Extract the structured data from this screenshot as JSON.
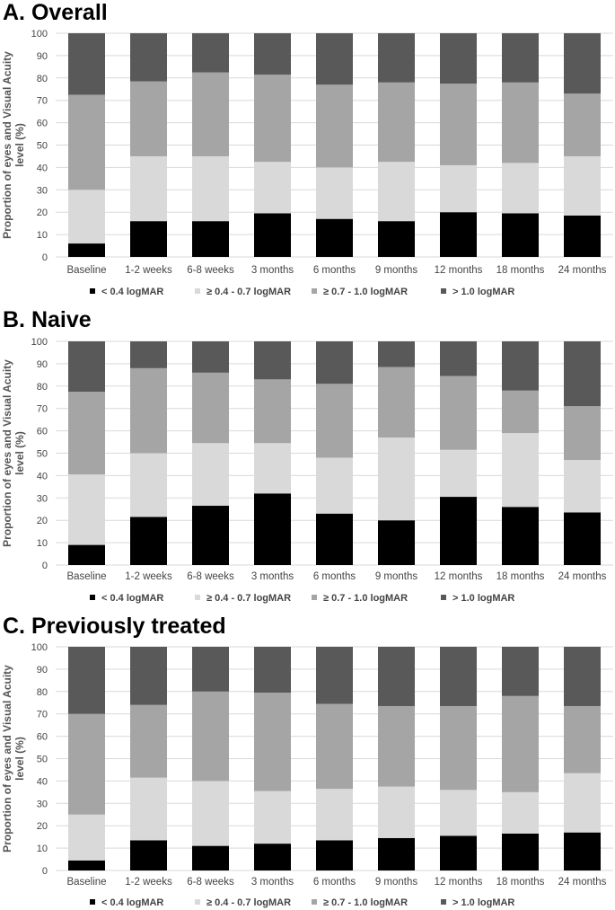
{
  "figure": {
    "series_colors": [
      "#000000",
      "#d9d9d9",
      "#a5a5a5",
      "#595959"
    ],
    "legend_labels": [
      "< 0.4 logMAR",
      "≥ 0.4 - 0.7 logMAR",
      "≥ 0.7 - 1.0 logMAR",
      "> 1.0 logMAR"
    ]
  },
  "chart_data": [
    {
      "type": "bar",
      "stacked": true,
      "title": "A. Overall",
      "ylabel": "Proportion of eyes and Visual Acuity level (%)",
      "ylabel_lines": [
        "Proportion of eyes and Visual Acuity",
        "level (%)"
      ],
      "ylim": [
        0,
        100
      ],
      "yticks": [
        0,
        10,
        20,
        30,
        40,
        50,
        60,
        70,
        80,
        90,
        100
      ],
      "grid": true,
      "legend": "bottom",
      "categories": [
        "Baseline",
        "1-2 weeks",
        "6-8 weeks",
        "3 months",
        "6 months",
        "9 months",
        "12 months",
        "18 months",
        "24 months"
      ],
      "series": [
        {
          "name": "< 0.4 logMAR",
          "values": [
            6,
            16,
            16,
            19.5,
            17,
            16,
            20,
            19.5,
            18.5
          ]
        },
        {
          "name": "≥ 0.4 - 0.7 logMAR",
          "values": [
            24,
            29,
            29,
            23,
            23,
            26.5,
            21,
            22.5,
            26.5
          ]
        },
        {
          "name": "≥ 0.7 - 1.0 logMAR",
          "values": [
            42.5,
            33.5,
            37.5,
            39,
            37,
            35.5,
            36.5,
            36,
            28
          ]
        },
        {
          "name": "> 1.0 logMAR",
          "values": [
            27.5,
            21.5,
            17.5,
            18.5,
            23,
            22,
            22.5,
            22,
            27
          ]
        }
      ]
    },
    {
      "type": "bar",
      "stacked": true,
      "title": "B. Naive",
      "ylabel": "Proportion of eyes and Visual Acuity level (%)",
      "ylabel_lines": [
        "Proportion of eyes and Visual Acuity",
        "level (%)"
      ],
      "ylim": [
        0,
        100
      ],
      "yticks": [
        0,
        10,
        20,
        30,
        40,
        50,
        60,
        70,
        80,
        90,
        100
      ],
      "grid": true,
      "legend": "bottom",
      "categories": [
        "Baseline",
        "1-2 weeks",
        "6-8 weeks",
        "3 months",
        "6 months",
        "9 months",
        "12 months",
        "18 months",
        "24 months"
      ],
      "series": [
        {
          "name": "< 0.4 logMAR",
          "values": [
            9,
            21.5,
            26.5,
            32,
            23,
            20,
            30.5,
            26,
            23.5
          ]
        },
        {
          "name": "≥ 0.4 - 0.7 logMAR",
          "values": [
            31.5,
            28.5,
            28,
            22.5,
            25,
            37,
            21,
            33,
            23.5
          ]
        },
        {
          "name": "≥ 0.7 - 1.0 logMAR",
          "values": [
            37,
            38,
            31.5,
            28.5,
            33,
            31.5,
            33,
            19,
            24
          ]
        },
        {
          "name": "> 1.0 logMAR",
          "values": [
            22.5,
            12,
            14,
            17,
            19,
            11.5,
            15.5,
            22,
            29
          ]
        }
      ]
    },
    {
      "type": "bar",
      "stacked": true,
      "title": "C. Previously treated",
      "ylabel": "Proportion of eyes and Visual Acuity level (%)",
      "ylabel_lines": [
        "Proportion of eyes and Visual Acuity",
        "level (%)"
      ],
      "ylim": [
        0,
        100
      ],
      "yticks": [
        0,
        10,
        20,
        30,
        40,
        50,
        60,
        70,
        80,
        90,
        100
      ],
      "grid": true,
      "legend": "bottom",
      "categories": [
        "Baseline",
        "1-2 weeks",
        "6-8 weeks",
        "3 months",
        "6 months",
        "9 months",
        "12 months",
        "18 months",
        "24 months"
      ],
      "series": [
        {
          "name": "< 0.4 logMAR",
          "values": [
            4.5,
            13.5,
            11,
            12,
            13.5,
            14.5,
            15.5,
            16.5,
            17
          ]
        },
        {
          "name": "≥ 0.4 - 0.7 logMAR",
          "values": [
            20.5,
            28,
            29,
            23.5,
            23,
            23,
            20.5,
            18.5,
            26.5
          ]
        },
        {
          "name": "≥ 0.7 - 1.0 logMAR",
          "values": [
            45,
            32.5,
            40,
            44,
            38,
            36,
            37.5,
            43,
            30
          ]
        },
        {
          "name": "> 1.0 logMAR",
          "values": [
            30,
            26,
            20,
            20.5,
            25.5,
            26.5,
            26.5,
            22,
            26.5
          ]
        }
      ]
    }
  ]
}
